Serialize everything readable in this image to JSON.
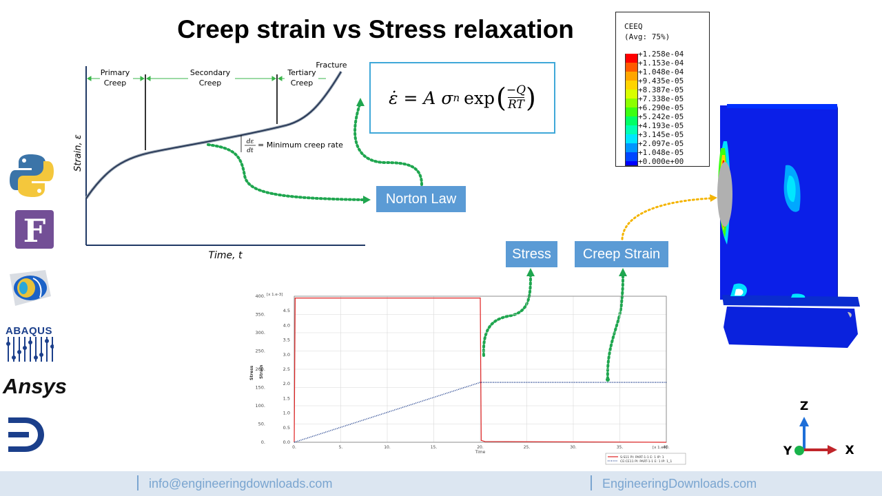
{
  "title": "Creep strain vs Stress relaxation",
  "creep_curve": {
    "stages": [
      "Primary Creep",
      "Secondary Creep",
      "Tertiary Creep"
    ],
    "fracture_label": "Fracture",
    "min_rate_label": "= Minimum creep rate",
    "deriv_num": "dε",
    "deriv_den": "dt",
    "y_label": "Strain, ε",
    "x_label": "Time, t"
  },
  "equation": {
    "lhs": "ε̇ = A σ",
    "exponent": "n",
    "exp_func": "exp",
    "numerator": "−Q",
    "denominator": "RT"
  },
  "labels": {
    "norton": "Norton Law",
    "stress": "Stress",
    "creep_strain": "Creep Strain"
  },
  "legend": {
    "title_line1": "CEEQ",
    "title_line2": "(Avg: 75%)",
    "entries": [
      "+1.258e-04",
      "+1.153e-04",
      "+1.048e-04",
      "+9.435e-05",
      "+8.387e-05",
      "+7.338e-05",
      "+6.290e-05",
      "+5.242e-05",
      "+4.193e-05",
      "+3.145e-05",
      "+2.097e-05",
      "+1.048e-05",
      "+0.000e+00"
    ],
    "colors": [
      "#ff0000",
      "#ff5a00",
      "#ffa600",
      "#ffd400",
      "#d8ff00",
      "#8cff00",
      "#3cff12",
      "#00ff66",
      "#00ffb4",
      "#00e6ff",
      "#0096ff",
      "#0046ff",
      "#0000ff"
    ]
  },
  "chart_data": {
    "type": "line",
    "xlabel": "Time",
    "x_multiplier": "[x 1.e3]",
    "ylabel_left": "Stress",
    "ylabel_right": "Strain",
    "y_right_multiplier": "[x 1.e-3]",
    "xlim": [
      0,
      40
    ],
    "ylim_left": [
      0,
      400
    ],
    "ylim_right": [
      0,
      5
    ],
    "x_ticks": [
      "0.",
      "5.",
      "10.",
      "15.",
      "20.",
      "25.",
      "30.",
      "35.",
      "40."
    ],
    "y_left_ticks": [
      "0.",
      "50.",
      "100.",
      "150.",
      "200.",
      "250.",
      "300.",
      "350.",
      "400."
    ],
    "y_right_ticks": [
      "0.0",
      "0.5",
      "1.0",
      "1.5",
      "2.0",
      "2.5",
      "3.0",
      "3.5",
      "4.0",
      "4.5"
    ],
    "series": [
      {
        "name": "S:S11 PI: PART-1-1 E: 1 IP: 1",
        "color": "#e02020",
        "style": "solid",
        "axis": "left",
        "x": [
          0,
          0.1,
          20,
          20.1,
          20.5,
          40
        ],
        "y": [
          0,
          395,
          395,
          5,
          2,
          0
        ]
      },
      {
        "name": "CE:CE11 PI: PART-1-1 E: 1 IP: 1_1",
        "color": "#1a3a8a",
        "style": "dotted",
        "axis": "right",
        "x": [
          0,
          20,
          40
        ],
        "y": [
          0,
          2.05,
          2.05
        ]
      }
    ]
  },
  "software_icons": [
    "python-icon",
    "fortran-icon",
    "comsol-icon",
    "abaqus-icon",
    "ansys-icon",
    "engineering-downloads-icon"
  ],
  "abaqus_text": "ABAQUS",
  "ansys_text": "Ansys",
  "triad": {
    "z": "Z",
    "y": "Y",
    "x": "X"
  },
  "footer": {
    "email": "info@engineeringdownloads.com",
    "site": "EngineeringDownloads.com"
  }
}
